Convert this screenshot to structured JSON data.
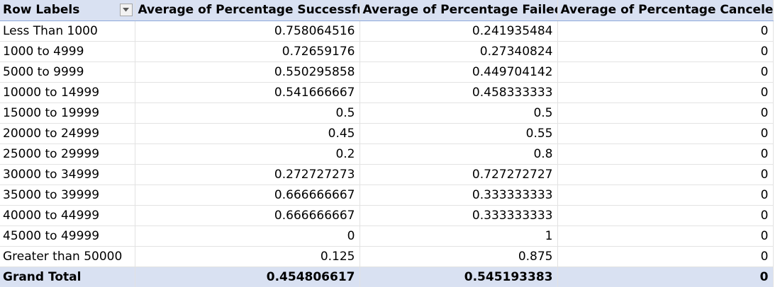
{
  "header": {
    "row_labels": "Row Labels",
    "col_successful": "Average of Percentage Successful",
    "col_failed": "Average of Percentage Failed",
    "col_canceled": "Average of Percentage Canceled"
  },
  "rows": [
    {
      "label": "Less Than 1000",
      "successful": "0.758064516",
      "failed": "0.241935484",
      "canceled": "0"
    },
    {
      "label": "1000 to 4999",
      "successful": "0.72659176",
      "failed": "0.27340824",
      "canceled": "0"
    },
    {
      "label": "5000 to 9999",
      "successful": "0.550295858",
      "failed": "0.449704142",
      "canceled": "0"
    },
    {
      "label": "10000 to 14999",
      "successful": "0.541666667",
      "failed": "0.458333333",
      "canceled": "0"
    },
    {
      "label": "15000 to 19999",
      "successful": "0.5",
      "failed": "0.5",
      "canceled": "0"
    },
    {
      "label": "20000 to 24999",
      "successful": "0.45",
      "failed": "0.55",
      "canceled": "0"
    },
    {
      "label": "25000 to 29999",
      "successful": "0.2",
      "failed": "0.8",
      "canceled": "0"
    },
    {
      "label": "30000 to 34999",
      "successful": "0.272727273",
      "failed": "0.727272727",
      "canceled": "0"
    },
    {
      "label": "35000 to 39999",
      "successful": "0.666666667",
      "failed": "0.333333333",
      "canceled": "0"
    },
    {
      "label": "40000 to 44999",
      "successful": "0.666666667",
      "failed": "0.333333333",
      "canceled": "0"
    },
    {
      "label": "45000 to 49999",
      "successful": "0",
      "failed": "1",
      "canceled": "0"
    },
    {
      "label": "Greater than 50000",
      "successful": "0.125",
      "failed": "0.875",
      "canceled": "0"
    }
  ],
  "total": {
    "label": "Grand Total",
    "successful": "0.454806617",
    "failed": "0.545193383",
    "canceled": "0"
  },
  "icons": {
    "filter": "filter-dropdown-icon"
  },
  "colors": {
    "header_fill": "#d9e1f2",
    "header_border": "#8ea9db",
    "gridline": "#e2e2e2"
  }
}
